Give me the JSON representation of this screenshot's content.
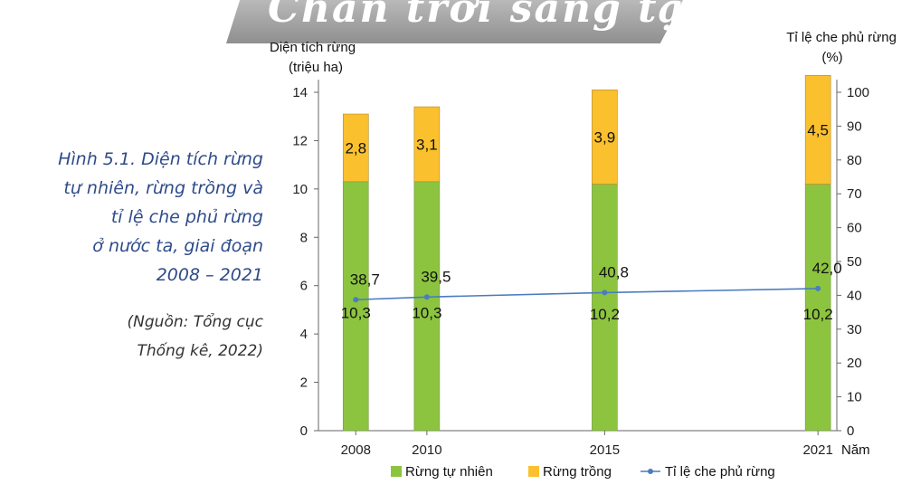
{
  "watermark": "Chân trời sáng tạo",
  "caption": {
    "lines": [
      "Hình 5.1. Diện tích rừng",
      "tự nhiên, rừng trồng và",
      "tỉ lệ che phủ rừng",
      "ở nước ta, giai đoạn",
      "2008 – 2021"
    ],
    "source_lines": [
      "(Nguồn: Tổng cục",
      "Thống kê, 2022)"
    ]
  },
  "chart_data": {
    "type": "bar",
    "stacked": true,
    "categories": [
      "2008",
      "2010",
      "2015",
      "2021"
    ],
    "x_numeric": [
      2008,
      2010,
      2015,
      2021
    ],
    "xlabel": "Năm",
    "ylabel_left": [
      "Diện tích rừng",
      "(triệu ha)"
    ],
    "ylabel_right": [
      "Tỉ lệ che phủ rừng",
      "(%)"
    ],
    "ylim_left": [
      0,
      14
    ],
    "yticks_left": [
      0,
      2,
      4,
      6,
      8,
      10,
      12,
      14
    ],
    "ylim_right": [
      0,
      100
    ],
    "yticks_right": [
      0,
      10,
      20,
      30,
      40,
      50,
      60,
      70,
      80,
      90,
      100
    ],
    "series": [
      {
        "name": "Rừng tự nhiên",
        "kind": "bar",
        "axis": "left",
        "color": "#8cc43f",
        "values": [
          10.3,
          10.3,
          10.2,
          10.2
        ],
        "labels": [
          "10,3",
          "10,3",
          "10,2",
          "10,2"
        ]
      },
      {
        "name": "Rừng trồng",
        "kind": "bar",
        "axis": "left",
        "color": "#fbc02d",
        "values": [
          2.8,
          3.1,
          3.9,
          4.5
        ],
        "labels": [
          "2,8",
          "3,1",
          "3,9",
          "4,5"
        ]
      },
      {
        "name": "Tỉ lệ che phủ rừng",
        "kind": "line",
        "axis": "right",
        "color": "#4a7cc0",
        "values": [
          38.7,
          39.5,
          40.8,
          42.0
        ],
        "labels": [
          "38,7",
          "39,5",
          "40,8",
          "42,0"
        ]
      }
    ],
    "legend_position": "bottom",
    "grid": false
  }
}
